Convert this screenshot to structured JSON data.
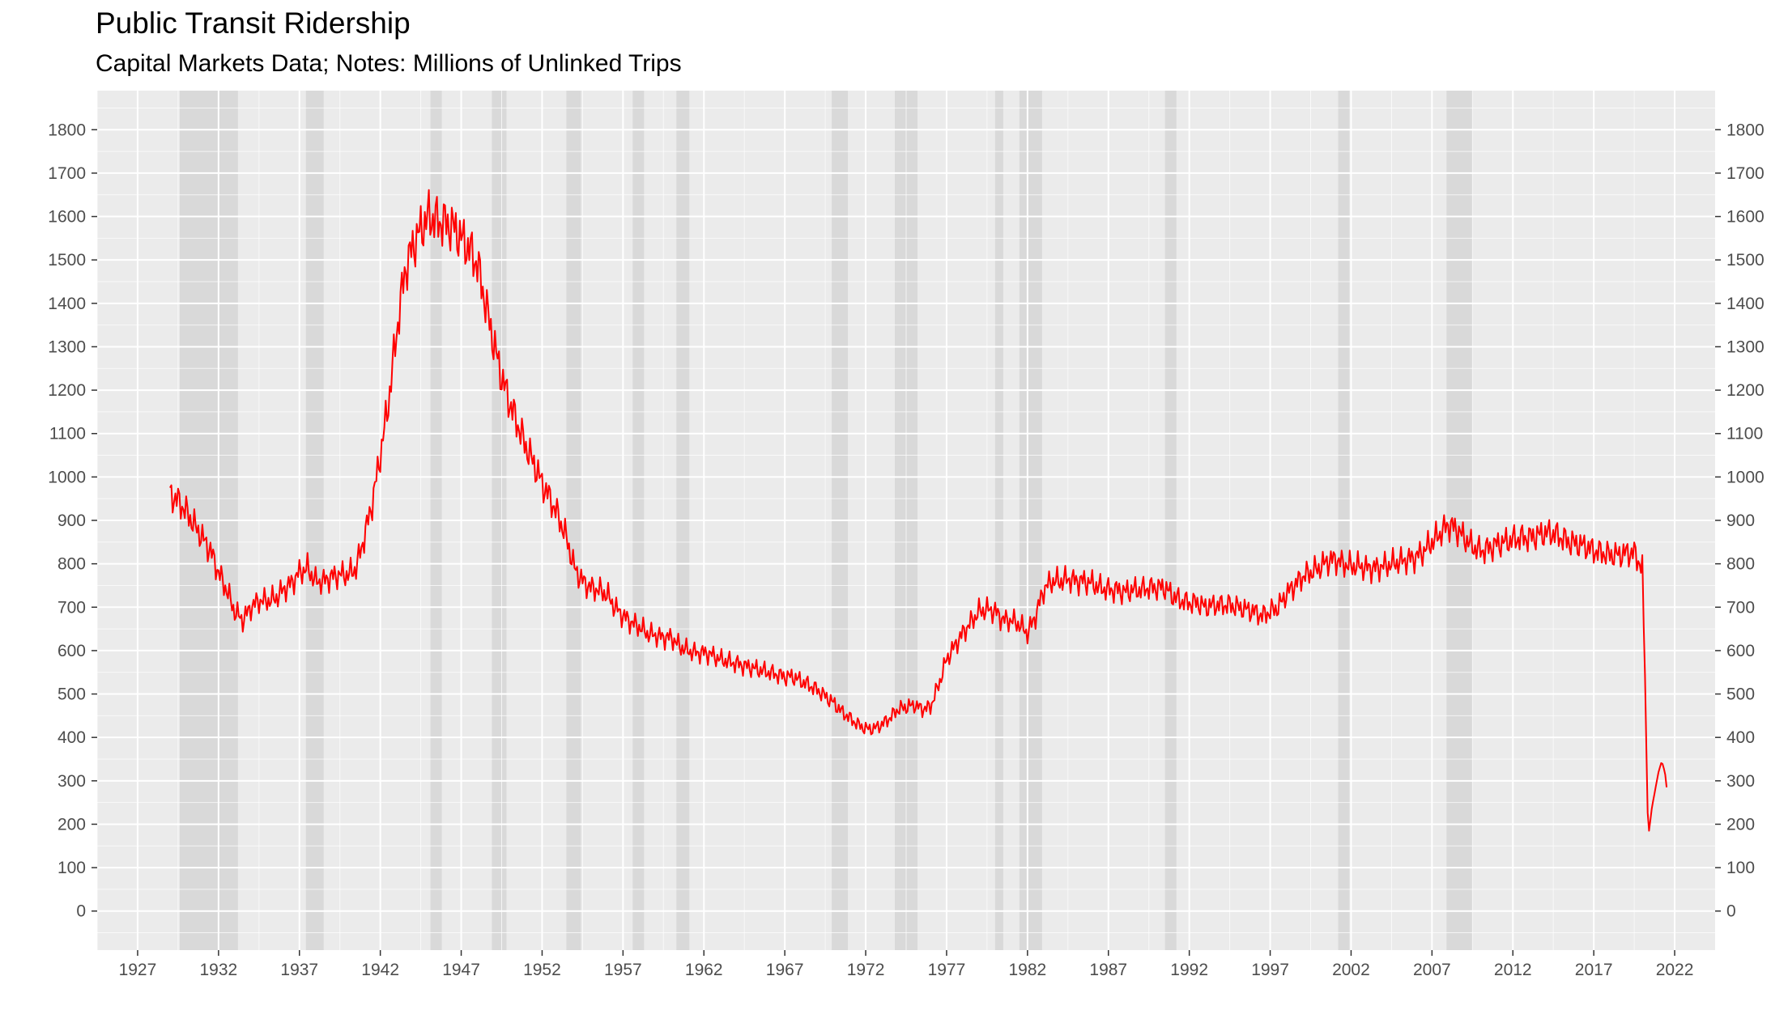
{
  "chart_data": {
    "type": "line",
    "title": "Public Transit Ridership",
    "subtitle": "Capital Markets Data; Notes: Millions of Unlinked Trips",
    "xlabel": "",
    "ylabel": "",
    "xlim": [
      1924.5,
      2024.5
    ],
    "ylim": [
      -90,
      1890
    ],
    "x_ticks": [
      "1927",
      "1932",
      "1937",
      "1942",
      "1947",
      "1952",
      "1957",
      "1962",
      "1967",
      "1972",
      "1977",
      "1982",
      "1987",
      "1992",
      "1997",
      "2002",
      "2007",
      "2012",
      "2017",
      "2022"
    ],
    "y_ticks": [
      "0",
      "100",
      "200",
      "300",
      "400",
      "500",
      "600",
      "700",
      "800",
      "900",
      "1000",
      "1100",
      "1200",
      "1300",
      "1400",
      "1500",
      "1600",
      "1700",
      "1800"
    ],
    "y_axis_both_sides": true,
    "grid": true,
    "line_color": "#ff0000",
    "recession_color": "#d9d9d9",
    "panel_color": "#ebebeb",
    "recessions": [
      [
        1929.6,
        1933.2
      ],
      [
        1937.4,
        1938.5
      ],
      [
        1945.1,
        1945.8
      ],
      [
        1948.9,
        1949.8
      ],
      [
        1953.5,
        1954.4
      ],
      [
        1957.6,
        1958.3
      ],
      [
        1960.3,
        1961.1
      ],
      [
        1969.9,
        1970.9
      ],
      [
        1973.8,
        1975.2
      ],
      [
        1980.0,
        1980.5
      ],
      [
        1981.5,
        1982.9
      ],
      [
        1990.5,
        1991.2
      ],
      [
        2001.2,
        2001.9
      ],
      [
        2007.9,
        2009.5
      ]
    ],
    "series": [
      {
        "values": [
          [
            1929.0,
            960
          ],
          [
            1929.5,
            945
          ],
          [
            1930.0,
            920
          ],
          [
            1930.5,
            890
          ],
          [
            1931.0,
            860
          ],
          [
            1931.5,
            830
          ],
          [
            1932.0,
            780
          ],
          [
            1932.5,
            740
          ],
          [
            1933.0,
            690
          ],
          [
            1933.5,
            670
          ],
          [
            1934.0,
            700
          ],
          [
            1934.5,
            715
          ],
          [
            1935.0,
            715
          ],
          [
            1935.5,
            720
          ],
          [
            1936.0,
            740
          ],
          [
            1936.5,
            755
          ],
          [
            1937.0,
            780
          ],
          [
            1937.5,
            790
          ],
          [
            1938.0,
            760
          ],
          [
            1938.5,
            760
          ],
          [
            1939.0,
            770
          ],
          [
            1939.5,
            775
          ],
          [
            1940.0,
            775
          ],
          [
            1940.5,
            790
          ],
          [
            1941.0,
            860
          ],
          [
            1941.5,
            940
          ],
          [
            1942.0,
            1050
          ],
          [
            1942.5,
            1170
          ],
          [
            1943.0,
            1330
          ],
          [
            1943.5,
            1470
          ],
          [
            1944.0,
            1530
          ],
          [
            1944.5,
            1570
          ],
          [
            1945.0,
            1600
          ],
          [
            1945.5,
            1590
          ],
          [
            1946.0,
            1585
          ],
          [
            1946.5,
            1575
          ],
          [
            1947.0,
            1550
          ],
          [
            1947.5,
            1525
          ],
          [
            1948.0,
            1490
          ],
          [
            1948.5,
            1400
          ],
          [
            1949.0,
            1310
          ],
          [
            1949.5,
            1230
          ],
          [
            1950.0,
            1170
          ],
          [
            1950.5,
            1120
          ],
          [
            1951.0,
            1070
          ],
          [
            1951.5,
            1030
          ],
          [
            1952.0,
            985
          ],
          [
            1952.5,
            950
          ],
          [
            1953.0,
            910
          ],
          [
            1953.5,
            860
          ],
          [
            1954.0,
            790
          ],
          [
            1954.5,
            760
          ],
          [
            1955.0,
            745
          ],
          [
            1955.5,
            740
          ],
          [
            1956.0,
            730
          ],
          [
            1956.5,
            700
          ],
          [
            1957.0,
            680
          ],
          [
            1957.5,
            665
          ],
          [
            1958.0,
            655
          ],
          [
            1958.5,
            640
          ],
          [
            1959.0,
            635
          ],
          [
            1959.5,
            630
          ],
          [
            1960.0,
            630
          ],
          [
            1960.5,
            610
          ],
          [
            1961.0,
            600
          ],
          [
            1961.5,
            595
          ],
          [
            1962.0,
            595
          ],
          [
            1962.5,
            590
          ],
          [
            1963.0,
            580
          ],
          [
            1963.5,
            575
          ],
          [
            1964.0,
            570
          ],
          [
            1964.5,
            565
          ],
          [
            1965.0,
            560
          ],
          [
            1965.5,
            555
          ],
          [
            1966.0,
            550
          ],
          [
            1966.5,
            545
          ],
          [
            1967.0,
            540
          ],
          [
            1967.5,
            540
          ],
          [
            1968.0,
            530
          ],
          [
            1968.5,
            520
          ],
          [
            1969.0,
            510
          ],
          [
            1969.5,
            495
          ],
          [
            1970.0,
            480
          ],
          [
            1970.5,
            460
          ],
          [
            1971.0,
            445
          ],
          [
            1971.5,
            430
          ],
          [
            1972.0,
            420
          ],
          [
            1972.5,
            420
          ],
          [
            1973.0,
            430
          ],
          [
            1973.5,
            445
          ],
          [
            1974.0,
            465
          ],
          [
            1974.5,
            470
          ],
          [
            1975.0,
            475
          ],
          [
            1975.5,
            465
          ],
          [
            1976.0,
            470
          ],
          [
            1976.5,
            520
          ],
          [
            1977.0,
            580
          ],
          [
            1977.5,
            610
          ],
          [
            1978.0,
            640
          ],
          [
            1978.5,
            665
          ],
          [
            1979.0,
            690
          ],
          [
            1979.5,
            695
          ],
          [
            1980.0,
            690
          ],
          [
            1980.5,
            670
          ],
          [
            1981.0,
            670
          ],
          [
            1981.5,
            660
          ],
          [
            1982.0,
            640
          ],
          [
            1982.5,
            680
          ],
          [
            1983.0,
            740
          ],
          [
            1983.5,
            760
          ],
          [
            1984.0,
            760
          ],
          [
            1984.5,
            765
          ],
          [
            1985.0,
            760
          ],
          [
            1985.5,
            760
          ],
          [
            1986.0,
            755
          ],
          [
            1986.5,
            745
          ],
          [
            1987.0,
            740
          ],
          [
            1987.5,
            740
          ],
          [
            1988.0,
            735
          ],
          [
            1988.5,
            740
          ],
          [
            1989.0,
            740
          ],
          [
            1989.5,
            745
          ],
          [
            1990.0,
            745
          ],
          [
            1990.5,
            745
          ],
          [
            1991.0,
            725
          ],
          [
            1991.5,
            715
          ],
          [
            1992.0,
            710
          ],
          [
            1992.5,
            710
          ],
          [
            1993.0,
            700
          ],
          [
            1993.5,
            705
          ],
          [
            1994.0,
            705
          ],
          [
            1994.5,
            705
          ],
          [
            1995.0,
            700
          ],
          [
            1995.5,
            695
          ],
          [
            1996.0,
            690
          ],
          [
            1996.5,
            680
          ],
          [
            1997.0,
            690
          ],
          [
            1997.5,
            700
          ],
          [
            1998.0,
            730
          ],
          [
            1998.5,
            750
          ],
          [
            1999.0,
            770
          ],
          [
            1999.5,
            780
          ],
          [
            2000.0,
            790
          ],
          [
            2000.5,
            805
          ],
          [
            2001.0,
            810
          ],
          [
            2001.5,
            800
          ],
          [
            2002.0,
            795
          ],
          [
            2002.5,
            795
          ],
          [
            2003.0,
            790
          ],
          [
            2003.5,
            790
          ],
          [
            2004.0,
            795
          ],
          [
            2004.5,
            800
          ],
          [
            2005.0,
            805
          ],
          [
            2005.5,
            810
          ],
          [
            2006.0,
            815
          ],
          [
            2006.5,
            830
          ],
          [
            2007.0,
            850
          ],
          [
            2007.5,
            870
          ],
          [
            2008.0,
            890
          ],
          [
            2008.5,
            880
          ],
          [
            2009.0,
            860
          ],
          [
            2009.5,
            840
          ],
          [
            2010.0,
            830
          ],
          [
            2010.5,
            835
          ],
          [
            2011.0,
            845
          ],
          [
            2011.5,
            850
          ],
          [
            2012.0,
            855
          ],
          [
            2012.5,
            860
          ],
          [
            2013.0,
            860
          ],
          [
            2013.5,
            865
          ],
          [
            2014.0,
            870
          ],
          [
            2014.5,
            870
          ],
          [
            2015.0,
            860
          ],
          [
            2015.5,
            850
          ],
          [
            2016.0,
            845
          ],
          [
            2016.5,
            840
          ],
          [
            2017.0,
            830
          ],
          [
            2017.5,
            825
          ],
          [
            2018.0,
            820
          ],
          [
            2018.5,
            820
          ],
          [
            2019.0,
            825
          ],
          [
            2019.5,
            825
          ],
          [
            2020.0,
            790
          ],
          [
            2020.1,
            630
          ],
          [
            2020.2,
            500
          ],
          [
            2020.3,
            250
          ],
          [
            2020.4,
            180
          ],
          [
            2020.6,
            240
          ],
          [
            2020.8,
            280
          ],
          [
            2021.0,
            320
          ],
          [
            2021.2,
            345
          ],
          [
            2021.4,
            320
          ],
          [
            2021.5,
            285
          ]
        ]
      }
    ]
  }
}
